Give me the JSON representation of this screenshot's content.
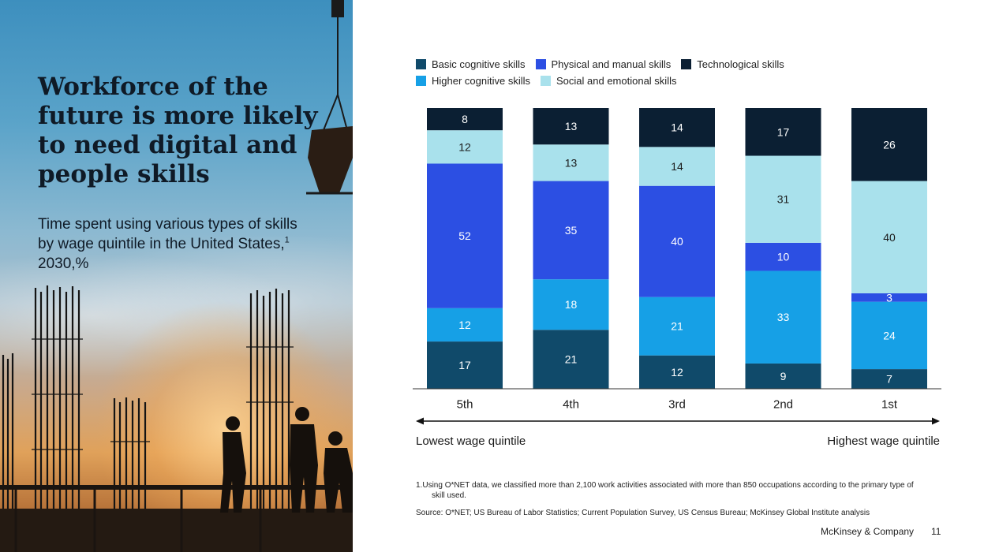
{
  "title": "Workforce of the future is more likely to need digital and people skills",
  "subtitle_main": "Time spent using various types of skills by wage quintile in the United States,",
  "subtitle_sup": "1",
  "subtitle_tail": " 2030,%",
  "legend": [
    {
      "name": "Basic cognitive skills",
      "color": "#104a6a"
    },
    {
      "name": "Physical and manual skills",
      "color": "#2c4fe3"
    },
    {
      "name": "Technological skills",
      "color": "#0b1f33"
    },
    {
      "name": "Higher cognitive skills",
      "color": "#16a0e6"
    },
    {
      "name": "Social and emotional skills",
      "color": "#a9e1ec"
    }
  ],
  "chart_data": {
    "type": "bar",
    "stacked": true,
    "categories": [
      "5th",
      "4th",
      "3rd",
      "2nd",
      "1st"
    ],
    "series": [
      {
        "name": "Basic cognitive skills",
        "color": "#104a6a",
        "values": [
          17,
          21,
          12,
          9,
          7
        ]
      },
      {
        "name": "Higher cognitive skills",
        "color": "#16a0e6",
        "values": [
          12,
          18,
          21,
          33,
          24
        ]
      },
      {
        "name": "Physical and manual skills",
        "color": "#2c4fe3",
        "values": [
          52,
          35,
          40,
          10,
          3
        ]
      },
      {
        "name": "Social and emotional skills",
        "color": "#a9e1ec",
        "values": [
          12,
          13,
          14,
          31,
          40
        ]
      },
      {
        "name": "Technological skills",
        "color": "#0b1f33",
        "values": [
          8,
          13,
          14,
          17,
          26
        ]
      }
    ],
    "ylim": [
      0,
      100
    ],
    "legend_position": "top",
    "grid": false
  },
  "axis_range": {
    "left_label": "Lowest wage quintile",
    "right_label": "Highest wage quintile"
  },
  "footnote_num": "1.",
  "footnote_text": "Using O*NET data, we classified more than 2,100 work activities associated with more than 850 occupations according to the primary type of",
  "footnote_cont": "skill used.",
  "source": "Source: O*NET; US Bureau of Labor Statistics; Current Population Survey, US Census Bureau; McKinsey Global Institute analysis",
  "brand": "McKinsey & Company",
  "page_number": "11"
}
